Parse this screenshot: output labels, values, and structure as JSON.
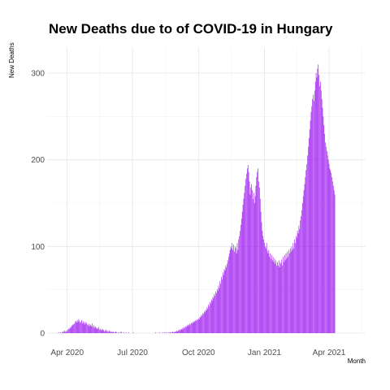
{
  "chart_data": {
    "type": "bar",
    "title": "New Deaths due to of COVID-19 in Hungary",
    "xlabel": "Month",
    "ylabel": "New Deaths",
    "xlim": [
      "2020-03-04",
      "2021-05-22"
    ],
    "ylim": [
      0,
      330
    ],
    "x_ticks": [
      {
        "date": "2020-04-01",
        "label": "Apr 2020"
      },
      {
        "date": "2020-07-01",
        "label": "Jul 2020"
      },
      {
        "date": "2020-10-01",
        "label": "Oct 2020"
      },
      {
        "date": "2021-01-01",
        "label": "Jan 2021"
      },
      {
        "date": "2021-04-01",
        "label": "Apr 2021"
      }
    ],
    "y_ticks": [
      0,
      100,
      200,
      300
    ],
    "grid": true,
    "bar_color": "#a020f0",
    "series": [
      {
        "start_date": "2020-03-15",
        "values": [
          0,
          0,
          0,
          0,
          0,
          1,
          0,
          0,
          1,
          0,
          1,
          2,
          1,
          3,
          2,
          1,
          3,
          2,
          4,
          5,
          5,
          7,
          6,
          8,
          9,
          10,
          10,
          11,
          13,
          14,
          12,
          15,
          13,
          16,
          14,
          12,
          13,
          15,
          11,
          14,
          12,
          10,
          13,
          11,
          12,
          10,
          9,
          11,
          8,
          10,
          9,
          8,
          11,
          7,
          9,
          6,
          8,
          7,
          5,
          6,
          5,
          7,
          4,
          5,
          3,
          4,
          5,
          3,
          4,
          2,
          3,
          4,
          2,
          3,
          1,
          2,
          3,
          2,
          1,
          2,
          1,
          2,
          1,
          0,
          1,
          2,
          1,
          0,
          1,
          0,
          1,
          0,
          2,
          1,
          0,
          0,
          1,
          0,
          0,
          1,
          0,
          0,
          0,
          1,
          0,
          0,
          0,
          0,
          0,
          1,
          0,
          0,
          0,
          0,
          0,
          0,
          0,
          0,
          0,
          0,
          0,
          0,
          0,
          0,
          0,
          0,
          0,
          0,
          0,
          0,
          0,
          0,
          0,
          0,
          0,
          0,
          0,
          0,
          0,
          0,
          1,
          0,
          0,
          0,
          0,
          0,
          1,
          0,
          0,
          0,
          1,
          0,
          0,
          1,
          0,
          1,
          0,
          0,
          1,
          0,
          1,
          1,
          0,
          1,
          2,
          1,
          1,
          2,
          1,
          2,
          3,
          2,
          3,
          4,
          3,
          4,
          5,
          4,
          6,
          5,
          7,
          6,
          8,
          7,
          9,
          8,
          10,
          9,
          11,
          10,
          12,
          11,
          13,
          12,
          14,
          13,
          15,
          14,
          16,
          15,
          17,
          16,
          19,
          18,
          21,
          20,
          23,
          22,
          25,
          24,
          27,
          26,
          30,
          28,
          33,
          31,
          36,
          34,
          39,
          37,
          42,
          40,
          45,
          43,
          48,
          46,
          51,
          49,
          55,
          52,
          60,
          57,
          65,
          62,
          70,
          67,
          74,
          72,
          78,
          76,
          80,
          84,
          88,
          92,
          96,
          100,
          98,
          104,
          96,
          102,
          94,
          100,
          98,
          92,
          104,
          96,
          108,
          112,
          118,
          125,
          132,
          140,
          148,
          155,
          162,
          170,
          178,
          184,
          190,
          194,
          186,
          175,
          160,
          168,
          172,
          165,
          155,
          162,
          150,
          158,
          170,
          180,
          186,
          190,
          175,
          168,
          155,
          140,
          128,
          118,
          112,
          108,
          104,
          100,
          98,
          104,
          95,
          92,
          96,
          88,
          92,
          86,
          90,
          84,
          88,
          82,
          86,
          80,
          84,
          78,
          82,
          78,
          84,
          76,
          82,
          80,
          85,
          78,
          88,
          82,
          90,
          84,
          92,
          86,
          94,
          88,
          96,
          92,
          98,
          94,
          100,
          96,
          104,
          98,
          108,
          104,
          112,
          110,
          118,
          115,
          124,
          120,
          130,
          135,
          142,
          150,
          158,
          165,
          172,
          180,
          188,
          195,
          205,
          215,
          225,
          235,
          245,
          255,
          262,
          270,
          275,
          268,
          280,
          290,
          300,
          295,
          305,
          310,
          298,
          285,
          290,
          280,
          270,
          260,
          250,
          240,
          230,
          220,
          215,
          210,
          205,
          200,
          195,
          190,
          188,
          185,
          180,
          175,
          170,
          165,
          160
        ]
      }
    ]
  }
}
